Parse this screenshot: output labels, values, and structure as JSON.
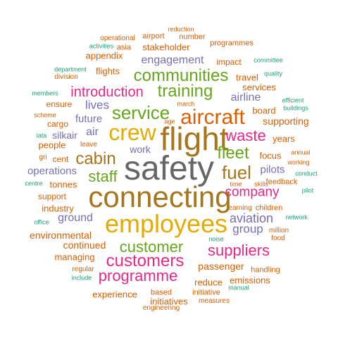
{
  "colors": {
    "orange": "#D95F02",
    "teal": "#1B9E77",
    "purple": "#7570B3",
    "magenta": "#E7298A",
    "green": "#66A61E",
    "gold": "#E6AB02",
    "brown": "#A6761D",
    "gray": "#666666"
  },
  "words": [
    {
      "text": "safety",
      "color": "gray"
    },
    {
      "text": "connecting",
      "color": "brown"
    },
    {
      "text": "employees",
      "color": "gold"
    },
    {
      "text": "flight",
      "color": "brown"
    },
    {
      "text": "crew",
      "color": "gold"
    },
    {
      "text": "aircraft",
      "color": "orange"
    },
    {
      "text": "service",
      "color": "green"
    },
    {
      "text": "communities",
      "color": "green"
    },
    {
      "text": "training",
      "color": "green"
    },
    {
      "text": "customers",
      "color": "magenta"
    },
    {
      "text": "customer",
      "color": "green"
    },
    {
      "text": "suppliers",
      "color": "magenta"
    },
    {
      "text": "programme",
      "color": "magenta"
    },
    {
      "text": "cabin",
      "color": "brown"
    },
    {
      "text": "fuel",
      "color": "brown"
    },
    {
      "text": "fleet",
      "color": "green"
    },
    {
      "text": "waste",
      "color": "magenta"
    },
    {
      "text": "introduction",
      "color": "magenta"
    },
    {
      "text": "company",
      "color": "magenta"
    },
    {
      "text": "staff",
      "color": "green"
    },
    {
      "text": "engagement",
      "color": "purple"
    },
    {
      "text": "aviation",
      "color": "purple"
    },
    {
      "text": "airline",
      "color": "purple"
    },
    {
      "text": "group",
      "color": "purple"
    },
    {
      "text": "operations",
      "color": "purple"
    },
    {
      "text": "ground",
      "color": "purple"
    },
    {
      "text": "pilots",
      "color": "purple"
    },
    {
      "text": "lives",
      "color": "purple"
    },
    {
      "text": "future",
      "color": "purple"
    },
    {
      "text": "air",
      "color": "purple"
    },
    {
      "text": "silkair",
      "color": "purple"
    },
    {
      "text": "work",
      "color": "purple"
    },
    {
      "text": "passenger",
      "color": "orange"
    },
    {
      "text": "supporting",
      "color": "orange"
    },
    {
      "text": "continued",
      "color": "orange"
    },
    {
      "text": "environmental",
      "color": "orange"
    },
    {
      "text": "managing",
      "color": "orange"
    },
    {
      "text": "experience",
      "color": "orange"
    },
    {
      "text": "initiatives",
      "color": "orange"
    },
    {
      "text": "reduce",
      "color": "orange"
    },
    {
      "text": "emissions",
      "color": "orange"
    },
    {
      "text": "stakeholder",
      "color": "orange"
    },
    {
      "text": "appendix",
      "color": "orange"
    },
    {
      "text": "flights",
      "color": "orange"
    },
    {
      "text": "travel",
      "color": "orange"
    },
    {
      "text": "services",
      "color": "orange"
    },
    {
      "text": "board",
      "color": "orange"
    },
    {
      "text": "years",
      "color": "orange"
    },
    {
      "text": "focus",
      "color": "orange"
    },
    {
      "text": "impact",
      "color": "orange"
    },
    {
      "text": "tonnes",
      "color": "orange"
    },
    {
      "text": "industry",
      "color": "orange"
    },
    {
      "text": "people",
      "color": "orange"
    },
    {
      "text": "support",
      "color": "orange"
    },
    {
      "text": "cargo",
      "color": "orange"
    },
    {
      "text": "ensure",
      "color": "orange"
    },
    {
      "text": "cent",
      "color": "orange"
    },
    {
      "text": "number",
      "color": "orange"
    },
    {
      "text": "programmes",
      "color": "orange"
    },
    {
      "text": "airport",
      "color": "orange"
    },
    {
      "text": "asia",
      "color": "orange"
    },
    {
      "text": "operational",
      "color": "orange"
    },
    {
      "text": "reduction",
      "color": "orange"
    },
    {
      "text": "division",
      "color": "orange"
    },
    {
      "text": "handling",
      "color": "orange"
    },
    {
      "text": "children",
      "color": "orange"
    },
    {
      "text": "learning",
      "color": "orange"
    },
    {
      "text": "feedback",
      "color": "orange"
    },
    {
      "text": "million",
      "color": "orange"
    },
    {
      "text": "food",
      "color": "orange"
    },
    {
      "text": "based",
      "color": "orange"
    },
    {
      "text": "initiative",
      "color": "orange"
    },
    {
      "text": "engineering",
      "color": "orange"
    },
    {
      "text": "measures",
      "color": "orange"
    },
    {
      "text": "regular",
      "color": "orange"
    },
    {
      "text": "leave",
      "color": "orange"
    },
    {
      "text": "scheme",
      "color": "orange"
    },
    {
      "text": "gri",
      "color": "orange"
    },
    {
      "text": "working",
      "color": "orange"
    },
    {
      "text": "annual",
      "color": "orange"
    },
    {
      "text": "march",
      "color": "orange"
    },
    {
      "text": "age",
      "color": "orange"
    },
    {
      "text": "skills",
      "color": "orange"
    },
    {
      "text": "time",
      "color": "orange"
    },
    {
      "text": "activities",
      "color": "teal"
    },
    {
      "text": "committee",
      "color": "teal"
    },
    {
      "text": "department",
      "color": "teal"
    },
    {
      "text": "quality",
      "color": "teal"
    },
    {
      "text": "members",
      "color": "teal"
    },
    {
      "text": "efficient",
      "color": "teal"
    },
    {
      "text": "buildings",
      "color": "teal"
    },
    {
      "text": "iata",
      "color": "teal"
    },
    {
      "text": "centre",
      "color": "teal"
    },
    {
      "text": "conduct",
      "color": "teal"
    },
    {
      "text": "pilot",
      "color": "teal"
    },
    {
      "text": "office",
      "color": "teal"
    },
    {
      "text": "network",
      "color": "teal"
    },
    {
      "text": "noise",
      "color": "teal"
    },
    {
      "text": "include",
      "color": "teal"
    },
    {
      "text": "manual",
      "color": "teal"
    }
  ]
}
